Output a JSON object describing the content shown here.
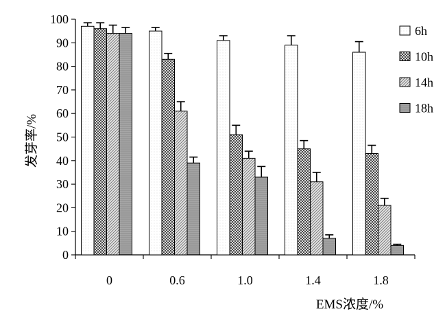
{
  "chart_data": {
    "type": "bar",
    "categories": [
      "0",
      "0.6",
      "1.0",
      "1.4",
      "1.8"
    ],
    "series": [
      {
        "name": "6h",
        "values": [
          97,
          95,
          91,
          89,
          86
        ],
        "errors": [
          1.5,
          1.5,
          2,
          4,
          4.5
        ]
      },
      {
        "name": "10h",
        "values": [
          96,
          83,
          51,
          45,
          43
        ],
        "errors": [
          2.5,
          2.5,
          4,
          3.5,
          3.5
        ]
      },
      {
        "name": "14h",
        "values": [
          94,
          61,
          41,
          31,
          21
        ],
        "errors": [
          3.5,
          4,
          3,
          4,
          3
        ]
      },
      {
        "name": "18h",
        "values": [
          94,
          39,
          33,
          7,
          4
        ],
        "errors": [
          2.5,
          2.5,
          4.5,
          1.5,
          0.5
        ]
      }
    ],
    "xlabel": "EMS浓度/%",
    "ylabel": "发芽率/%",
    "ylim": [
      0,
      100
    ],
    "yticks": [
      0,
      10,
      20,
      30,
      40,
      50,
      60,
      70,
      80,
      90,
      100
    ],
    "grid": false,
    "legend": "right"
  }
}
